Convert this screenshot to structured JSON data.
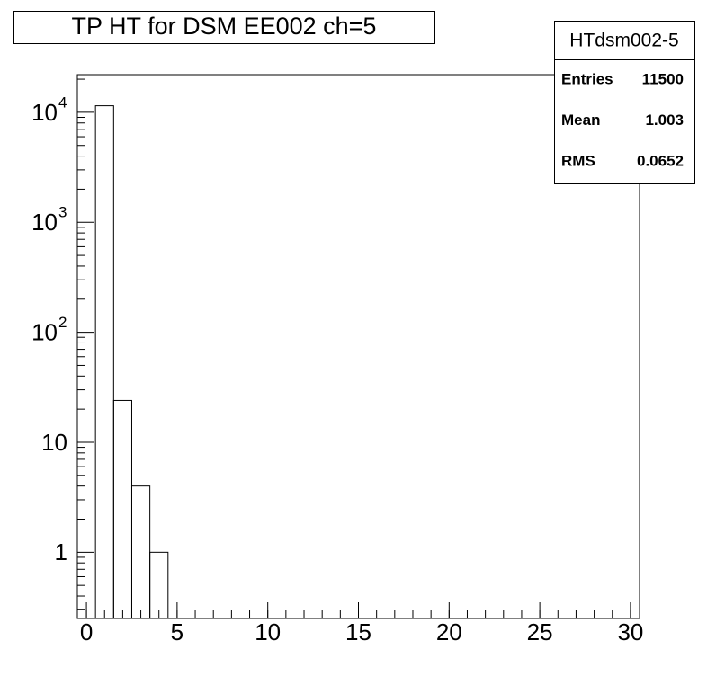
{
  "chart_data": {
    "type": "histogram",
    "title": "TP HT for DSM EE002 ch=5",
    "bins": [
      -0.5,
      0.5,
      1.5,
      2.5,
      3.5,
      4.5,
      5.5,
      6.5,
      7.5,
      8.5,
      9.5,
      10.5,
      11.5,
      12.5,
      13.5,
      14.5,
      15.5,
      16.5,
      17.5,
      18.5,
      19.5,
      20.5,
      21.5,
      22.5,
      23.5,
      24.5,
      25.5,
      26.5,
      27.5,
      28.5,
      29.5,
      30.5
    ],
    "values": [
      0,
      11471,
      24,
      4,
      1,
      0,
      0,
      0,
      0,
      0,
      0,
      0,
      0,
      0,
      0,
      0,
      0,
      0,
      0,
      0,
      0,
      0,
      0,
      0,
      0,
      0,
      0,
      0,
      0,
      0,
      0
    ],
    "color": "#000000",
    "xlim": [
      -0.5,
      30.5
    ],
    "xticks": [
      0,
      5,
      10,
      15,
      20,
      25,
      30
    ],
    "ylim": [
      0.25,
      22000
    ],
    "ylog": true,
    "yticks": [
      1,
      10,
      {
        "value": 100,
        "label": "10",
        "sup": "2"
      },
      {
        "value": 1000,
        "label": "10",
        "sup": "3"
      },
      {
        "value": 10000,
        "label": "10",
        "sup": "4"
      }
    ],
    "stats": {
      "title": "HTdsm002-5",
      "rows": [
        {
          "label": "Entries",
          "value": 11500
        },
        {
          "label": "Mean",
          "value": 1.003
        },
        {
          "label": "RMS",
          "value": 0.0652
        }
      ]
    }
  }
}
